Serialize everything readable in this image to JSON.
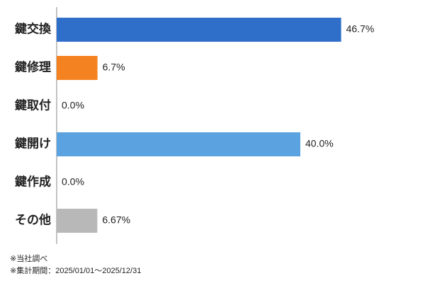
{
  "chart_data": {
    "type": "bar",
    "orientation": "horizontal",
    "categories": [
      "鍵交換",
      "鍵修理",
      "鍵取付",
      "鍵開け",
      "鍵作成",
      "その他"
    ],
    "values": [
      46.7,
      6.7,
      0,
      40,
      0,
      6.67
    ],
    "value_labels": [
      "46.7%",
      "6.7%",
      "0.0%",
      "40.0%",
      "0.0%",
      "6.67%"
    ],
    "colors": [
      "#2f6fc9",
      "#f58220",
      "#2f6fc9",
      "#5ba3e0",
      "#2f6fc9",
      "#b8b8b8"
    ],
    "xlim": [
      0,
      50
    ],
    "notes": [
      "※当社調べ",
      "※集計期間：2025/01/01～2025/12/31"
    ]
  }
}
